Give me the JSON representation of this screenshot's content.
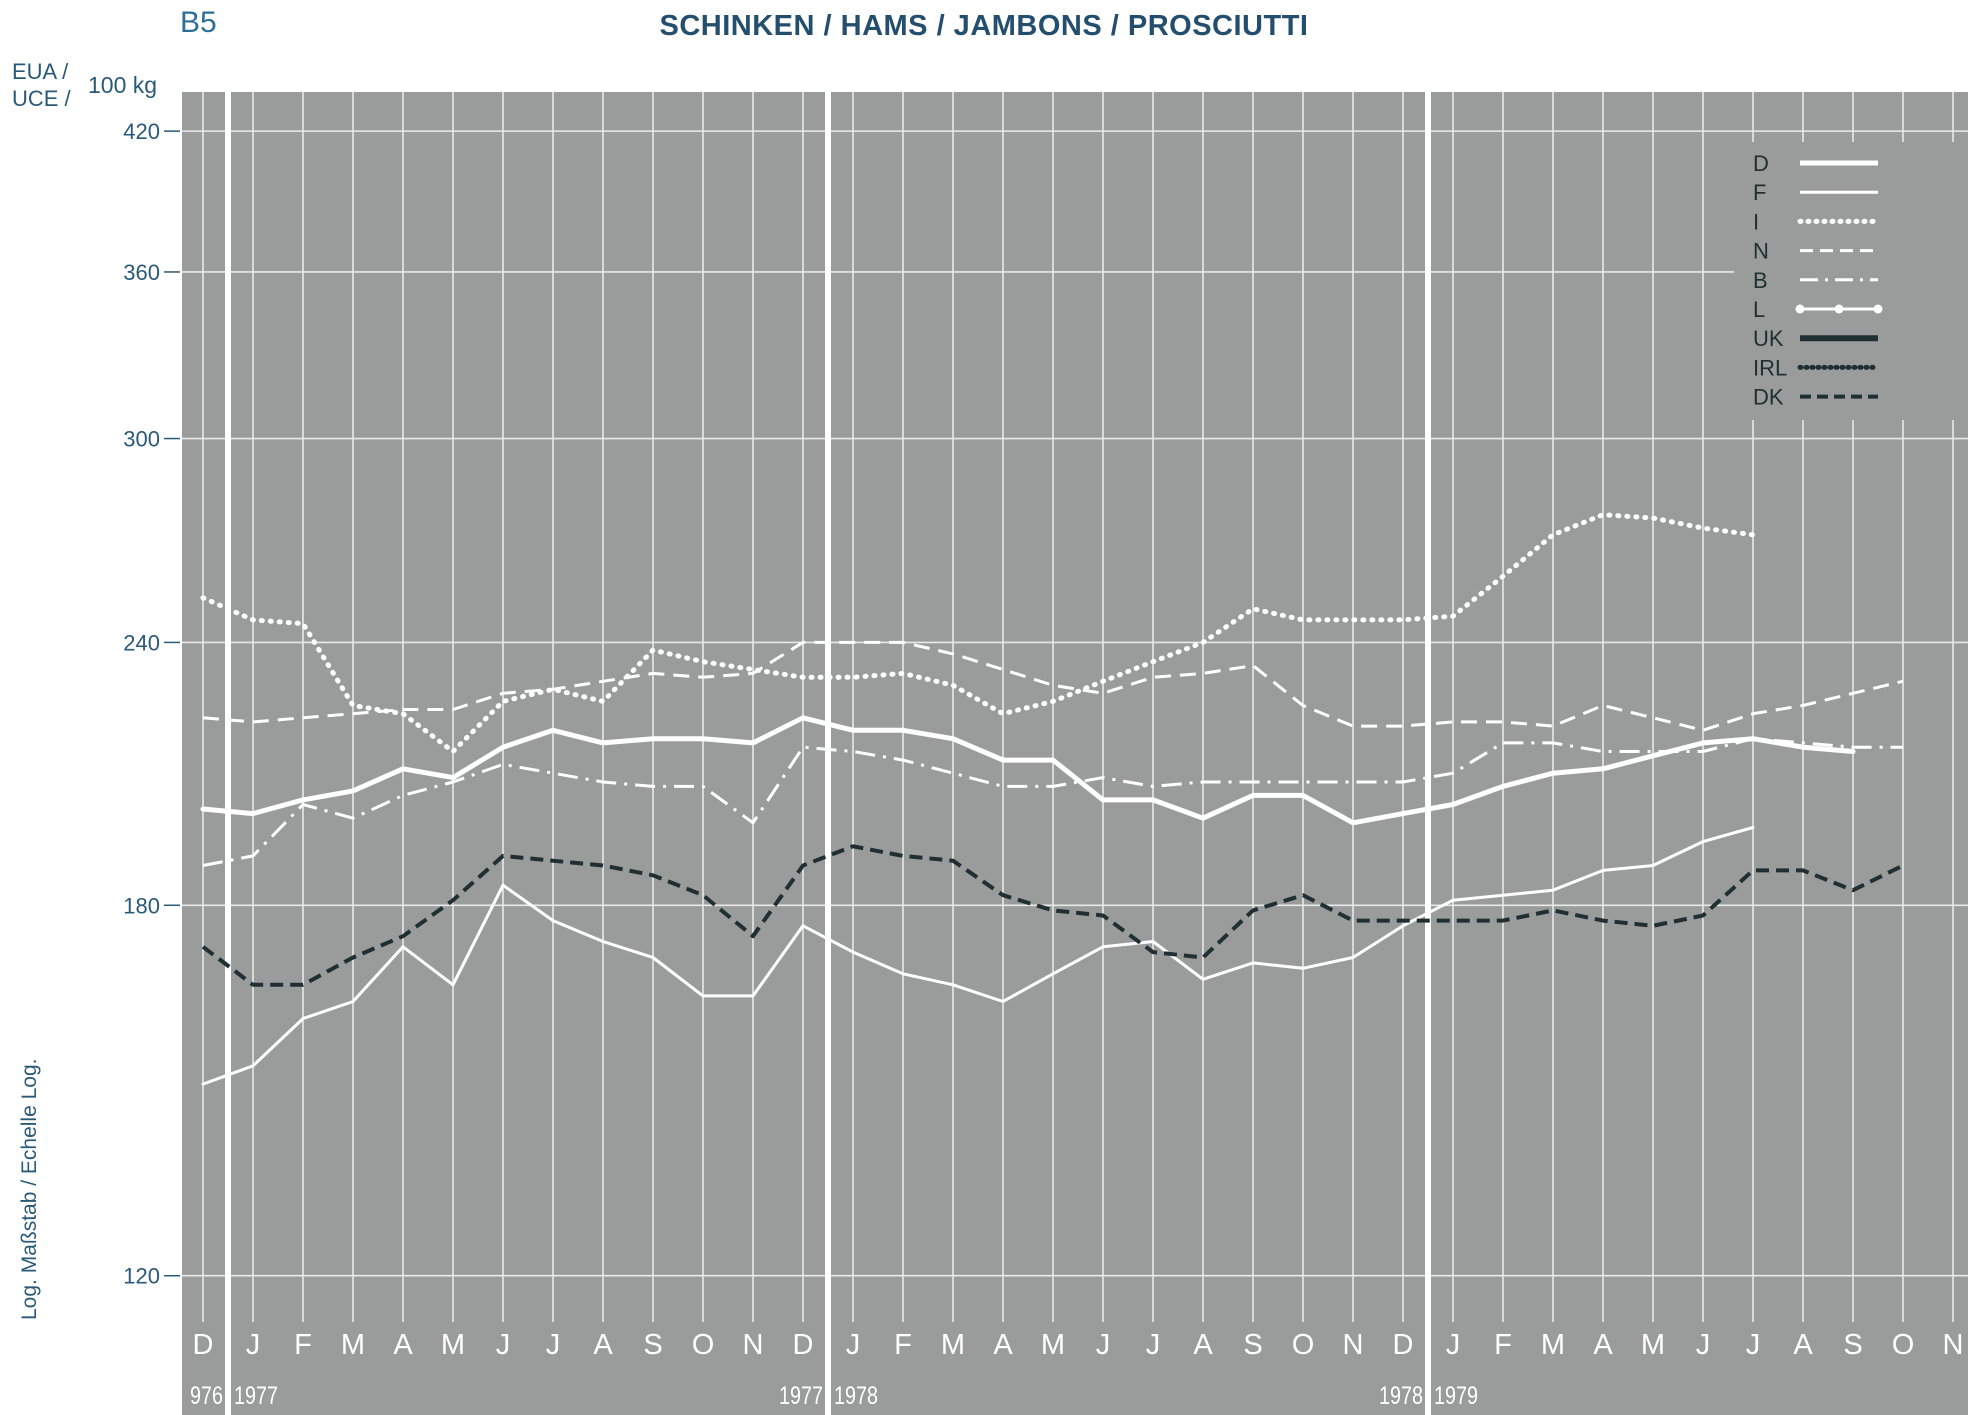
{
  "header": {
    "code": "B5",
    "title": "SCHINKEN / HAMS / JAMBONS / PROSCIUTTI",
    "unit_line1": "EUA /",
    "unit_line2": "UCE /",
    "unit_suffix": "100 kg",
    "scale_label": "Log. Maßstab / Echelle Log."
  },
  "colors": {
    "background": "#9a9c9b",
    "grid": "#e8eaea",
    "axis_text": "#2a5a78",
    "light_series": "#ffffff",
    "dark_series": "#1f2f33"
  },
  "chart_data": {
    "type": "line",
    "title": "SCHINKEN / HAMS / JAMBONS / PROSCIUTTI",
    "ylabel": "EUA / UCE / 100 kg",
    "yscale": "log",
    "ylim": [
      108,
      460
    ],
    "yticks": [
      120,
      180,
      240,
      300,
      360,
      420
    ],
    "grid": true,
    "legend_position": "top-right",
    "x": [
      "D",
      "J",
      "F",
      "M",
      "A",
      "M",
      "J",
      "J",
      "A",
      "S",
      "O",
      "N",
      "D",
      "J",
      "F",
      "M",
      "A",
      "M",
      "J",
      "J",
      "A",
      "S",
      "O",
      "N",
      "D",
      "J",
      "F",
      "M",
      "A",
      "M",
      "J",
      "J",
      "A",
      "S",
      "O",
      "N"
    ],
    "year_labels": [
      {
        "index": 0,
        "label": "976"
      },
      {
        "index": 1,
        "label": "1977"
      },
      {
        "index": 12,
        "label": "1977"
      },
      {
        "index": 13,
        "label": "1978"
      },
      {
        "index": 24,
        "label": "1978"
      },
      {
        "index": 25,
        "label": "1979"
      }
    ],
    "series": [
      {
        "name": "D",
        "style": "solid-thick",
        "color": "#ffffff",
        "values": [
          200,
          199,
          202,
          204,
          209,
          207,
          214,
          218,
          215,
          216,
          216,
          215,
          221,
          218,
          218,
          216,
          211,
          211,
          202,
          202,
          198,
          203,
          203,
          197,
          199,
          201,
          205,
          208,
          209,
          212,
          215,
          216,
          214,
          213,
          null,
          null
        ]
      },
      {
        "name": "F",
        "style": "solid-thin",
        "color": "#ffffff",
        "values": [
          148,
          151,
          159,
          162,
          172,
          165,
          184,
          177,
          173,
          170,
          163,
          163,
          176,
          171,
          167,
          165,
          162,
          167,
          172,
          173,
          166,
          169,
          168,
          170,
          176,
          181,
          182,
          183,
          187,
          188,
          193,
          196,
          null,
          null,
          null,
          null
        ]
      },
      {
        "name": "I",
        "style": "dotted",
        "color": "#ffffff",
        "values": [
          252,
          246,
          245,
          224,
          222,
          213,
          225,
          228,
          225,
          238,
          235,
          233,
          231,
          231,
          232,
          229,
          222,
          225,
          230,
          235,
          240,
          249,
          246,
          246,
          246,
          247,
          258,
          270,
          276,
          275,
          272,
          270,
          null,
          null,
          null,
          null
        ]
      },
      {
        "name": "N",
        "style": "dashed",
        "color": "#ffffff",
        "values": [
          221,
          220,
          221,
          222,
          223,
          223,
          227,
          228,
          230,
          232,
          231,
          232,
          240,
          240,
          240,
          237,
          233,
          229,
          227,
          231,
          232,
          234,
          224,
          219,
          219,
          220,
          220,
          219,
          224,
          221,
          218,
          222,
          224,
          227,
          230,
          null
        ]
      },
      {
        "name": "B",
        "style": "dashdot",
        "color": "#ffffff",
        "values": [
          188,
          190,
          201,
          198,
          203,
          206,
          210,
          208,
          206,
          205,
          205,
          197,
          214,
          213,
          211,
          208,
          205,
          205,
          207,
          205,
          206,
          206,
          206,
          206,
          206,
          208,
          215,
          215,
          213,
          213,
          213,
          216,
          215,
          214,
          214,
          null
        ]
      },
      {
        "name": "DK",
        "style": "dashed-dark",
        "color": "#1f2f33",
        "values": [
          172,
          165,
          165,
          170,
          174,
          181,
          190,
          189,
          188,
          186,
          182,
          174,
          188,
          192,
          190,
          189,
          182,
          179,
          178,
          171,
          170,
          179,
          182,
          177,
          177,
          177,
          177,
          179,
          177,
          176,
          178,
          187,
          187,
          183,
          188,
          null
        ]
      }
    ],
    "legend": [
      "D",
      "F",
      "I",
      "N",
      "B",
      "L",
      "UK",
      "IRL",
      "DK"
    ]
  }
}
